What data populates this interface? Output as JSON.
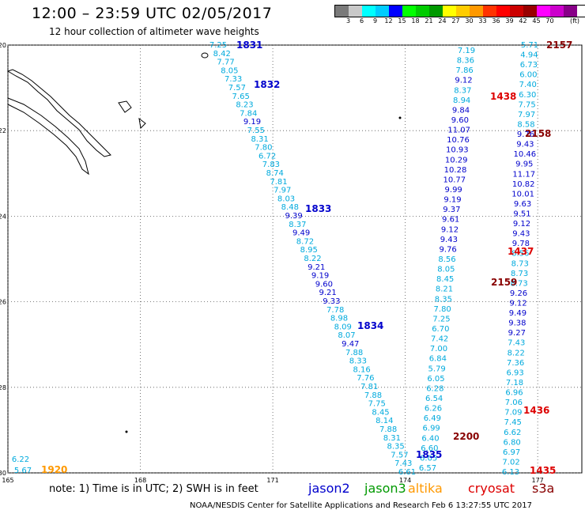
{
  "header": {
    "title": "12:00 – 23:59 UTC 02/05/2017",
    "subtitle": "12 hour collection of altimeter wave heights"
  },
  "color_scale": {
    "colors": [
      "#7a7a7a",
      "#c8c8c8",
      "#00ffff",
      "#00ccff",
      "#0000ff",
      "#00ff00",
      "#00cc00",
      "#009900",
      "#ffff00",
      "#ffcc00",
      "#ff9900",
      "#ff3300",
      "#ff0000",
      "#cc0000",
      "#990000",
      "#ff00ff",
      "#cc00cc",
      "#880088",
      "#ffffff"
    ],
    "labels": [
      "3",
      "6",
      "9",
      "12",
      "15",
      "18",
      "21",
      "24",
      "27",
      "30",
      "33",
      "36",
      "39",
      "42",
      "45",
      "70"
    ],
    "unit": "(ft)"
  },
  "map": {
    "lon_ticks": [
      "165",
      "168",
      "171",
      "174",
      "177"
    ],
    "lat_ticks": [
      "-20",
      "-22",
      "-24",
      "-26",
      "-28",
      "-30"
    ],
    "lon_range": [
      165,
      178
    ],
    "lat_range": [
      -20,
      -30
    ]
  },
  "passes": [
    {
      "time": "1831",
      "color": "#0000cc",
      "values": [
        "7.25",
        "8.42",
        "7.77",
        "8.05",
        "7.33",
        "7.57",
        "7.65",
        "8.23",
        "7.84",
        "9.19",
        "7.55",
        "8.31",
        "7.80",
        "6.72",
        "7.83",
        "8.74",
        "7.81",
        "7.97",
        "8.03",
        "8.48",
        "9.39",
        "8.37",
        "9.49",
        "8.72",
        "8.95",
        "8.22",
        "9.21",
        "9.19",
        "9.60",
        "9.21",
        "9.33",
        "7.78",
        "8.98",
        "8.09",
        "8.07",
        "9.47",
        "7.88",
        "8.33",
        "8.16",
        "7.76",
        "7.81",
        "7.88",
        "7.75",
        "8.45",
        "8.14",
        "7.88",
        "8.31",
        "8.35",
        "7.57",
        "7.43",
        "6.61"
      ]
    },
    {
      "time": "1832",
      "color": "#0000cc"
    },
    {
      "time": "1833",
      "color": "#0000cc"
    },
    {
      "time": "1834",
      "color": "#0000cc"
    },
    {
      "time": "1835",
      "color": "#0000cc"
    },
    {
      "time": "2200",
      "color": "#880000",
      "values": [
        "7.19",
        "8.36",
        "7.86",
        "9.12",
        "8.37",
        "8.94",
        "9.84",
        "9.60",
        "11.07",
        "10.76",
        "10.93",
        "10.29",
        "10.28",
        "10.77",
        "9.99",
        "9.19",
        "9.37",
        "9.61",
        "9.12",
        "9.43",
        "9.76",
        "8.56",
        "8.05",
        "8.45",
        "8.21",
        "8.35",
        "7.80",
        "7.25",
        "6.70",
        "7.42",
        "7.00",
        "6.84",
        "5.79",
        "6.05",
        "6.28",
        "6.54",
        "6.26",
        "6.49",
        "6.99",
        "6.40",
        "6.60",
        "6.05",
        "6.57"
      ]
    },
    {
      "time": "2157",
      "color": "#880000",
      "values": [
        "5.71",
        "4.94",
        "6.73",
        "6.00",
        "7.40",
        "6.30",
        "7.75",
        "7.97",
        "8.58",
        "9.76",
        "9.43",
        "10.46",
        "9.95",
        "11.17",
        "10.82",
        "10.01",
        "9.63",
        "9.51",
        "9.12",
        "9.43",
        "9.78",
        "8.56",
        "8.73",
        "8.73",
        "8.73",
        "9.26",
        "9.12",
        "9.49",
        "9.38",
        "9.27",
        "7.43",
        "8.22",
        "7.36",
        "6.93",
        "7.18",
        "6.96",
        "7.06",
        "7.09",
        "7.45",
        "6.62",
        "6.80",
        "6.97",
        "7.02",
        "6.13"
      ]
    },
    {
      "time": "2158",
      "color": "#880000"
    },
    {
      "time": "2159",
      "color": "#880000"
    },
    {
      "time": "1438",
      "color": "#dd0000"
    },
    {
      "time": "1437",
      "color": "#dd0000"
    },
    {
      "time": "1436",
      "color": "#dd0000"
    },
    {
      "time": "1435",
      "color": "#dd0000"
    },
    {
      "time": "1920",
      "color": "#ff9900",
      "values": [
        "6.22",
        "5.67"
      ]
    }
  ],
  "footer": {
    "note": "note:  1) Time is in UTC; 2) SWH is in feet",
    "legend": [
      {
        "name": "jason2",
        "color": "#0000cc"
      },
      {
        "name": "jason3",
        "color": "#009900"
      },
      {
        "name": "altika",
        "color": "#ff9900"
      },
      {
        "name": "cryosat",
        "color": "#dd0000"
      },
      {
        "name": "s3a",
        "color": "#880000"
      }
    ],
    "credit": "NOAA/NESDIS Center for Satellite Applications and Research     Feb  6 13:27:55 UTC 2017"
  }
}
